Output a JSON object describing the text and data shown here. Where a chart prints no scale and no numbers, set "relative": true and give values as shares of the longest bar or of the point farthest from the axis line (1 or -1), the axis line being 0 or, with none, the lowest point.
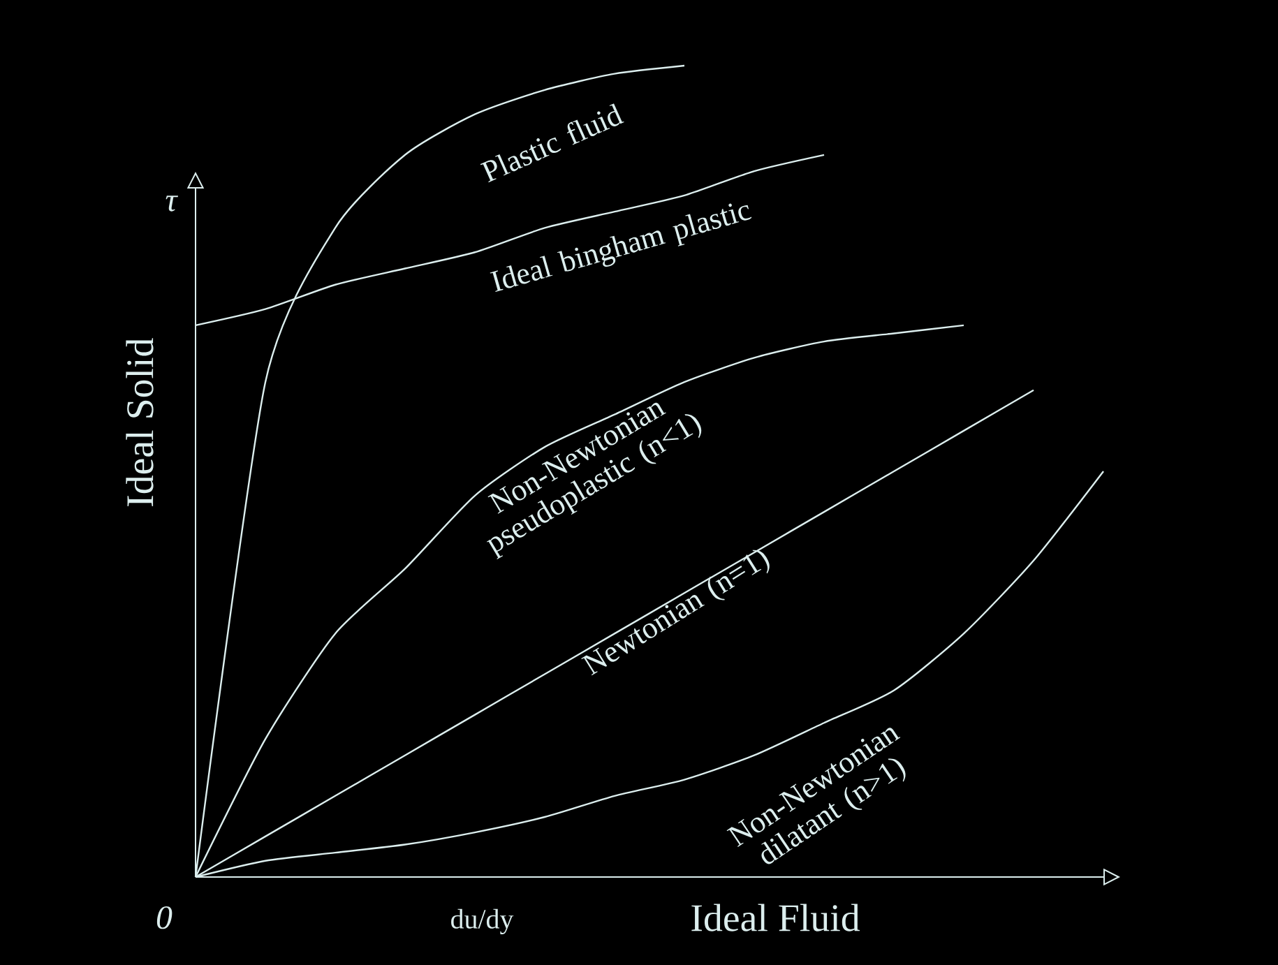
{
  "chart_data": {
    "type": "line",
    "relative": true,
    "xlabel": "Ideal Fluid",
    "ylabel": "Ideal Solid",
    "annotations": [
      "τ",
      "0",
      "du/dy"
    ],
    "categories": [
      null,
      null,
      null,
      null,
      null,
      null,
      null,
      null,
      null,
      null,
      null,
      null,
      null,
      null
    ],
    "series": [
      {
        "name": "Plastic fluid",
        "color": "#dceeee",
        "values": [
          0,
          0.61,
          0.8,
          0.89,
          0.94,
          0.97,
          0.99,
          1.0,
          null,
          null,
          null,
          null,
          null,
          null
        ]
      },
      {
        "name": "Ideal bingham plastic",
        "color": "#dceeee",
        "values": [
          0.68,
          0.7,
          0.73,
          0.75,
          0.77,
          0.8,
          0.82,
          0.84,
          0.87,
          0.89,
          null,
          null,
          null,
          null
        ]
      },
      {
        "name": "Non-Newtonian pseudoplastic (n<1)",
        "color": "#dceeee",
        "values": [
          0,
          0.17,
          0.3,
          0.38,
          0.47,
          0.53,
          0.57,
          0.61,
          0.64,
          0.66,
          0.67,
          0.68,
          null,
          null
        ]
      },
      {
        "name": "Newtonian (n=1)",
        "color": "#dceeee",
        "values": [
          0,
          0.05,
          0.1,
          0.15,
          0.2,
          0.25,
          0.3,
          0.35,
          0.4,
          0.45,
          0.5,
          0.55,
          0.6,
          null
        ]
      },
      {
        "name": "Non-Newtonian dilatant (n>1)",
        "color": "#dceeee",
        "values": [
          0,
          0.02,
          0.03,
          0.04,
          0.055,
          0.074,
          0.1,
          0.12,
          0.15,
          0.19,
          0.23,
          0.3,
          0.39,
          0.5
        ]
      }
    ]
  }
}
